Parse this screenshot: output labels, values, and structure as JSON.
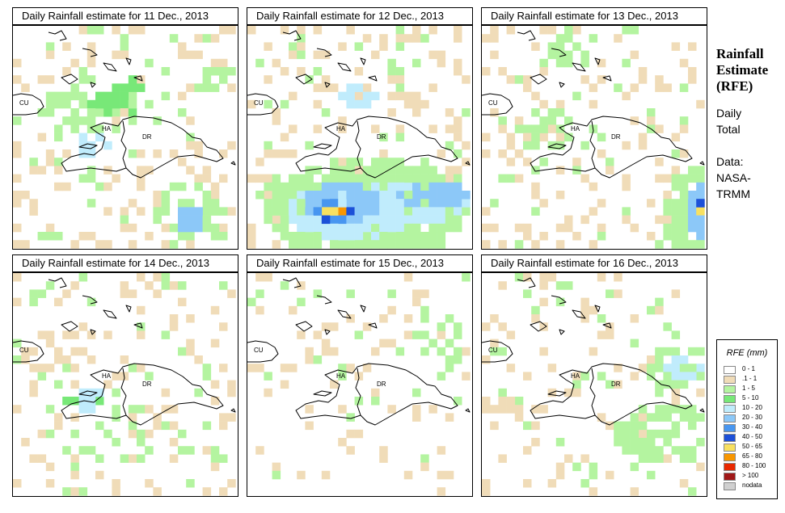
{
  "panels": [
    {
      "title": "Daily Rainfall estimate for  11 Dec., 2013"
    },
    {
      "title": "Daily Rainfall estimate for  12 Dec., 2013"
    },
    {
      "title": "Daily Rainfall estimate for  13 Dec., 2013"
    },
    {
      "title": "Daily Rainfall estimate for  14 Dec., 2013"
    },
    {
      "title": "Daily Rainfall estimate for  15 Dec., 2013"
    },
    {
      "title": "Daily Rainfall estimate for  16 Dec., 2013"
    }
  ],
  "map_labels": {
    "cuba": "CU",
    "haiti": "HA",
    "dominican_republic": "DR"
  },
  "side": {
    "title_lines": [
      "Rainfall",
      "Estimate",
      "(RFE)"
    ],
    "daily": "Daily",
    "total": "Total",
    "data_label": "Data:",
    "source_1": "NASA-",
    "source_2": "TRMM"
  },
  "legend": {
    "title": "RFE (mm)",
    "items": [
      {
        "label": "0 - 1",
        "color": "#ffffff"
      },
      {
        "label": ".1 - 1",
        "color": "#f0dcb8"
      },
      {
        "label": "1 - 5",
        "color": "#b4f4a0"
      },
      {
        "label": "5 - 10",
        "color": "#78e878"
      },
      {
        "label": "10 - 20",
        "color": "#c0ecfc"
      },
      {
        "label": "20 - 30",
        "color": "#8cc8f8"
      },
      {
        "label": "30 - 40",
        "color": "#4896f0"
      },
      {
        "label": "40 - 50",
        "color": "#1c50d8"
      },
      {
        "label": "50 - 65",
        "color": "#f8e060"
      },
      {
        "label": "65 - 80",
        "color": "#f89600"
      },
      {
        "label": "80 - 100",
        "color": "#e82800"
      },
      {
        "label": "> 100",
        "color": "#a01818"
      },
      {
        "label": "nodata",
        "color": "#d0d0d0"
      }
    ]
  }
}
